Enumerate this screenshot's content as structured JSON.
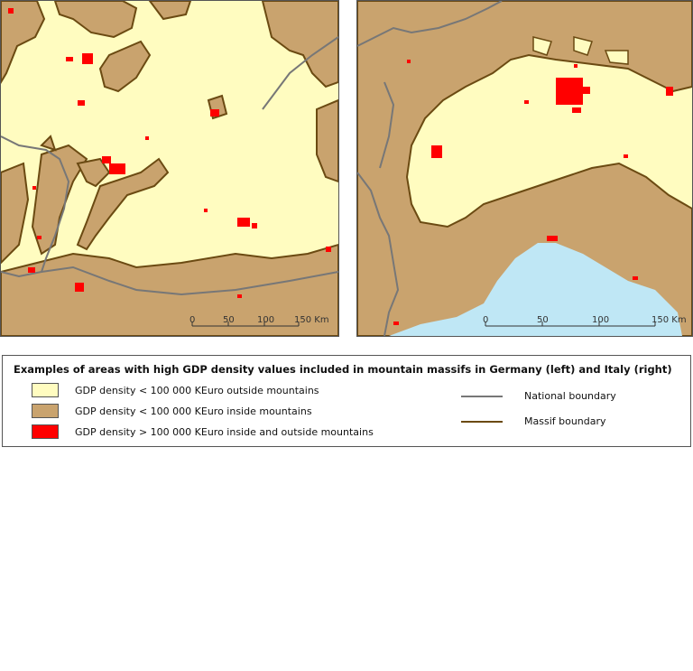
{
  "colors": {
    "outside_mountains": "#fffcc0",
    "inside_mountains": "#c9a36e",
    "high_gdp": "#ff0000",
    "sea": "#bfe7f5",
    "national_boundary": "#777777",
    "massif_boundary": "#6b4a12"
  },
  "map_left": {
    "scale": {
      "ticks": [
        "0",
        "50",
        "100"
      ],
      "last_label": "150 Km"
    }
  },
  "map_right": {
    "scale": {
      "ticks": [
        "0",
        "50",
        "100"
      ],
      "last_label": "150 Km"
    }
  },
  "legend": {
    "title": "Examples of areas with high GDP density values included in mountain massifs in Germany (left) and Italy (right)",
    "items": [
      {
        "label": "GDP density < 100 000 KEuro outside mountains",
        "swatch": "outside"
      },
      {
        "label": "GDP density < 100 000 KEuro inside mountains",
        "swatch": "inside"
      },
      {
        "label": "GDP density > 100 000 KEuro inside and outside mountains",
        "swatch": "high"
      }
    ],
    "lines": [
      {
        "label": "National boundary"
      },
      {
        "label": "Massif  boundary"
      }
    ]
  }
}
